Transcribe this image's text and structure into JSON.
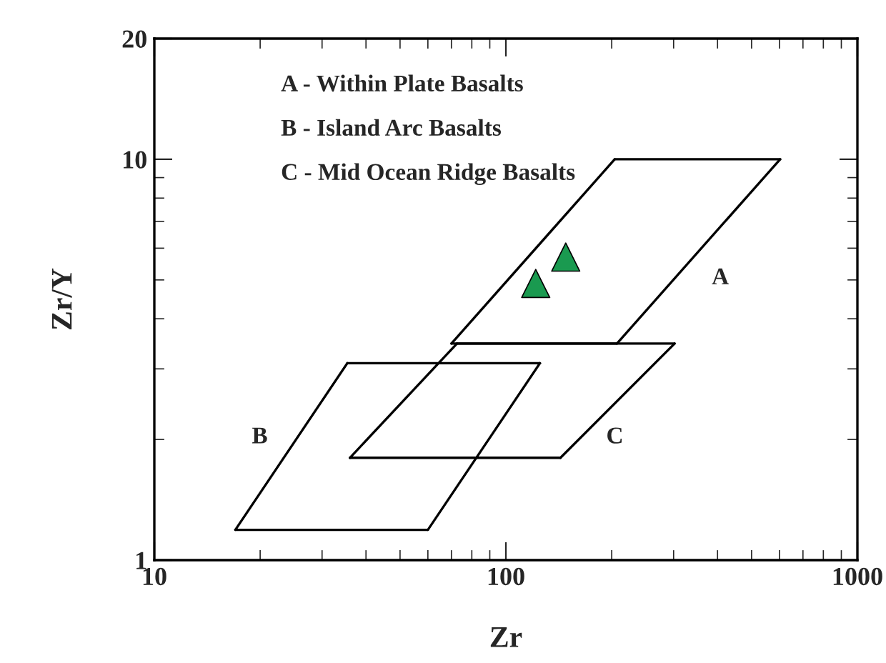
{
  "chart_data": {
    "type": "line",
    "xlabel": "Zr",
    "ylabel": "Zr/Y",
    "log": "xy",
    "xlim": [
      10,
      1000
    ],
    "xticks": [
      10,
      100,
      1000
    ],
    "ylim": [
      1,
      20
    ],
    "yticks": [
      1,
      10,
      20
    ],
    "grid": false,
    "legend": false,
    "series": [
      {
        "color": "#000000",
        "x": [
          70,
          204
        ],
        "values": [
          3.47,
          10
        ]
      },
      {
        "color": "#000000",
        "x": [
          204,
          603
        ],
        "values": [
          10,
          10
        ]
      },
      {
        "color": "#000000",
        "x": [
          207,
          603
        ],
        "values": [
          3.47,
          10
        ]
      },
      {
        "color": "#000000",
        "x": [
          70,
          207
        ],
        "values": [
          3.47,
          3.47
        ]
      },
      {
        "color": "#000000",
        "x": [
          17,
          35.4
        ],
        "values": [
          1.19,
          3.1
        ]
      },
      {
        "color": "#000000",
        "x": [
          35.4,
          125
        ],
        "values": [
          3.1,
          3.1
        ]
      },
      {
        "color": "#000000",
        "x": [
          60,
          125
        ],
        "values": [
          1.19,
          3.1
        ]
      },
      {
        "color": "#000000",
        "x": [
          17,
          60
        ],
        "values": [
          1.19,
          1.19
        ]
      },
      {
        "color": "#000000",
        "x": [
          36,
          72.6
        ],
        "values": [
          1.8,
          3.47
        ]
      },
      {
        "color": "#000000",
        "x": [
          72.6,
          302
        ],
        "values": [
          3.47,
          3.47
        ]
      },
      {
        "color": "#000000",
        "x": [
          143,
          302
        ],
        "values": [
          1.8,
          3.47
        ]
      },
      {
        "color": "#000000",
        "x": [
          36,
          143
        ],
        "values": [
          1.8,
          1.8
        ]
      },
      {
        "type": "scatter",
        "color": "#1a9a50",
        "marker": "triangle",
        "x": [
          121.6,
          148
        ],
        "values": [
          4.9,
          5.7
        ]
      }
    ],
    "annotations": [
      "A - Within Plate Basalts",
      "B - Island Arc Basalts",
      "C - Mid Ocean Ridge Basalts",
      "A",
      "B",
      "C"
    ]
  }
}
